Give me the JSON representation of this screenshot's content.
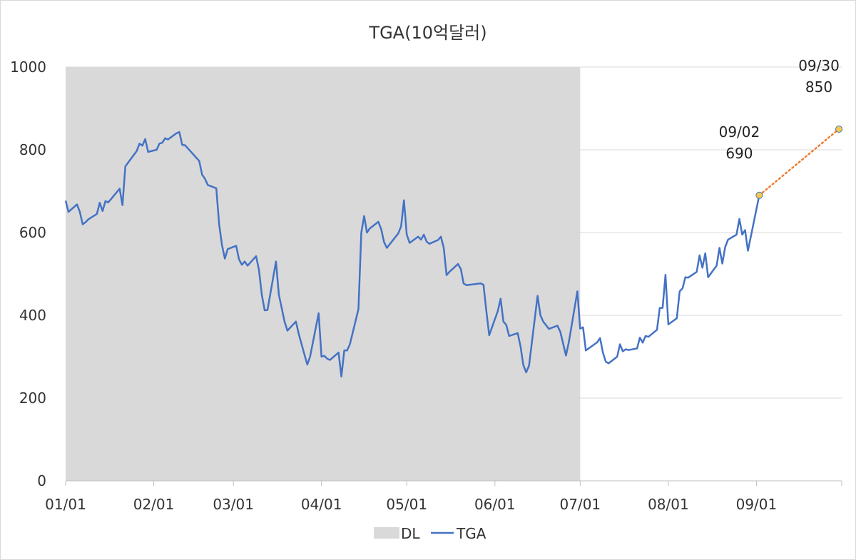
{
  "chart_data": {
    "type": "line",
    "title": "TGA(10억달러)",
    "xlabel": "",
    "ylabel": "",
    "ylim": [
      0,
      1000
    ],
    "yticks": [
      0,
      200,
      400,
      600,
      800,
      1000
    ],
    "xlim": [
      "01/01",
      "10/01"
    ],
    "xticks": [
      "01/01",
      "02/01",
      "03/01",
      "04/01",
      "05/01",
      "06/01",
      "07/01",
      "08/01",
      "09/01"
    ],
    "grid": "horizontal",
    "legend_position": "bottom",
    "shaded_region": {
      "name": "DL",
      "x_start": "01/01",
      "x_end": "07/01",
      "color": "#d9d9d9"
    },
    "series": [
      {
        "name": "TGA",
        "color": "#4472c4",
        "style": "solid",
        "points": [
          [
            "01/01",
            677
          ],
          [
            "01/02",
            650
          ],
          [
            "01/05",
            668
          ],
          [
            "01/06",
            650
          ],
          [
            "01/07",
            620
          ],
          [
            "01/08",
            625
          ],
          [
            "01/09",
            632
          ],
          [
            "01/12",
            645
          ],
          [
            "01/13",
            672
          ],
          [
            "01/14",
            652
          ],
          [
            "01/15",
            676
          ],
          [
            "01/16",
            673
          ],
          [
            "01/20",
            706
          ],
          [
            "01/21",
            666
          ],
          [
            "01/22",
            760
          ],
          [
            "01/26",
            797
          ],
          [
            "01/27",
            815
          ],
          [
            "01/28",
            810
          ],
          [
            "01/29",
            826
          ],
          [
            "01/30",
            795
          ],
          [
            "02/02",
            800
          ],
          [
            "02/03",
            815
          ],
          [
            "02/04",
            817
          ],
          [
            "02/05",
            828
          ],
          [
            "02/06",
            825
          ],
          [
            "02/09",
            840
          ],
          [
            "02/10",
            843
          ],
          [
            "02/11",
            812
          ],
          [
            "02/12",
            811
          ],
          [
            "02/17",
            773
          ],
          [
            "02/18",
            740
          ],
          [
            "02/19",
            730
          ],
          [
            "02/20",
            715
          ],
          [
            "02/23",
            707
          ],
          [
            "02/24",
            620
          ],
          [
            "02/25",
            570
          ],
          [
            "02/26",
            537
          ],
          [
            "02/27",
            560
          ],
          [
            "03/02",
            568
          ],
          [
            "03/03",
            535
          ],
          [
            "03/04",
            522
          ],
          [
            "03/05",
            530
          ],
          [
            "03/06",
            520
          ],
          [
            "03/09",
            543
          ],
          [
            "03/10",
            510
          ],
          [
            "03/11",
            450
          ],
          [
            "03/12",
            412
          ],
          [
            "03/13",
            413
          ],
          [
            "03/16",
            530
          ],
          [
            "03/17",
            450
          ],
          [
            "03/19",
            385
          ],
          [
            "03/20",
            363
          ],
          [
            "03/23",
            385
          ],
          [
            "03/24",
            355
          ],
          [
            "03/26",
            305
          ],
          [
            "03/27",
            281
          ],
          [
            "03/28",
            300
          ],
          [
            "03/31",
            405
          ],
          [
            "04/01",
            300
          ],
          [
            "04/02",
            302
          ],
          [
            "04/03",
            295
          ],
          [
            "04/04",
            292
          ],
          [
            "04/07",
            310
          ],
          [
            "04/08",
            252
          ],
          [
            "04/09",
            315
          ],
          [
            "04/10",
            315
          ],
          [
            "04/11",
            330
          ],
          [
            "04/14",
            415
          ],
          [
            "04/15",
            600
          ],
          [
            "04/16",
            640
          ],
          [
            "04/17",
            600
          ],
          [
            "04/18",
            610
          ],
          [
            "04/21",
            626
          ],
          [
            "04/22",
            608
          ],
          [
            "04/23",
            577
          ],
          [
            "04/24",
            563
          ],
          [
            "04/28",
            598
          ],
          [
            "04/29",
            615
          ],
          [
            "04/30",
            678
          ],
          [
            "05/01",
            595
          ],
          [
            "05/02",
            575
          ],
          [
            "05/05",
            590
          ],
          [
            "05/06",
            583
          ],
          [
            "05/07",
            595
          ],
          [
            "05/08",
            578
          ],
          [
            "05/09",
            573
          ],
          [
            "05/12",
            582
          ],
          [
            "05/13",
            590
          ],
          [
            "05/14",
            563
          ],
          [
            "05/15",
            497
          ],
          [
            "05/16",
            505
          ],
          [
            "05/19",
            524
          ],
          [
            "05/20",
            512
          ],
          [
            "05/21",
            477
          ],
          [
            "05/22",
            473
          ],
          [
            "05/27",
            477
          ],
          [
            "05/28",
            474
          ],
          [
            "05/29",
            410
          ],
          [
            "05/30",
            352
          ],
          [
            "06/02",
            410
          ],
          [
            "06/03",
            440
          ],
          [
            "06/04",
            385
          ],
          [
            "06/05",
            377
          ],
          [
            "06/06",
            350
          ],
          [
            "06/09",
            357
          ],
          [
            "06/10",
            325
          ],
          [
            "06/11",
            280
          ],
          [
            "06/12",
            262
          ],
          [
            "06/13",
            278
          ],
          [
            "06/16",
            447
          ],
          [
            "06/17",
            400
          ],
          [
            "06/18",
            385
          ],
          [
            "06/20",
            367
          ],
          [
            "06/23",
            375
          ],
          [
            "06/24",
            360
          ],
          [
            "06/26",
            303
          ],
          [
            "06/27",
            335
          ],
          [
            "06/30",
            458
          ],
          [
            "07/01",
            368
          ],
          [
            "07/02",
            371
          ],
          [
            "07/03",
            315
          ],
          [
            "07/07",
            335
          ],
          [
            "07/08",
            345
          ],
          [
            "07/09",
            310
          ],
          [
            "07/10",
            288
          ],
          [
            "07/11",
            284
          ],
          [
            "07/14",
            300
          ],
          [
            "07/15",
            330
          ],
          [
            "07/16",
            313
          ],
          [
            "07/17",
            318
          ],
          [
            "07/18",
            316
          ],
          [
            "07/21",
            320
          ],
          [
            "07/22",
            346
          ],
          [
            "07/23",
            334
          ],
          [
            "07/24",
            350
          ],
          [
            "07/25",
            348
          ],
          [
            "07/28",
            365
          ],
          [
            "07/29",
            418
          ],
          [
            "07/30",
            418
          ],
          [
            "07/31",
            498
          ],
          [
            "08/01",
            378
          ],
          [
            "08/04",
            393
          ],
          [
            "08/05",
            458
          ],
          [
            "08/06",
            465
          ],
          [
            "08/07",
            492
          ],
          [
            "08/08",
            491
          ],
          [
            "08/11",
            505
          ],
          [
            "08/12",
            545
          ],
          [
            "08/13",
            515
          ],
          [
            "08/14",
            550
          ],
          [
            "08/15",
            492
          ],
          [
            "08/18",
            520
          ],
          [
            "08/19",
            563
          ],
          [
            "08/20",
            525
          ],
          [
            "08/21",
            565
          ],
          [
            "08/22",
            583
          ],
          [
            "08/25",
            595
          ],
          [
            "08/26",
            633
          ],
          [
            "08/27",
            595
          ],
          [
            "08/28",
            606
          ],
          [
            "08/29",
            556
          ],
          [
            "09/02",
            690
          ]
        ]
      },
      {
        "name": "",
        "color": "#ed7d31",
        "style": "dotted",
        "points": [
          [
            "09/02",
            690
          ],
          [
            "09/30",
            850
          ]
        ]
      }
    ],
    "annotations": [
      {
        "x": "09/02",
        "y": 690,
        "date_label": "09/02",
        "value_label": "690",
        "marker_color": "#f7c948"
      },
      {
        "x": "09/30",
        "y": 850,
        "date_label": "09/30",
        "value_label": "850",
        "marker_color": "#f7c948"
      }
    ],
    "legend": [
      {
        "name": "DL",
        "kind": "box",
        "color": "#d9d9d9"
      },
      {
        "name": "TGA",
        "kind": "line",
        "color": "#4472c4"
      }
    ]
  }
}
